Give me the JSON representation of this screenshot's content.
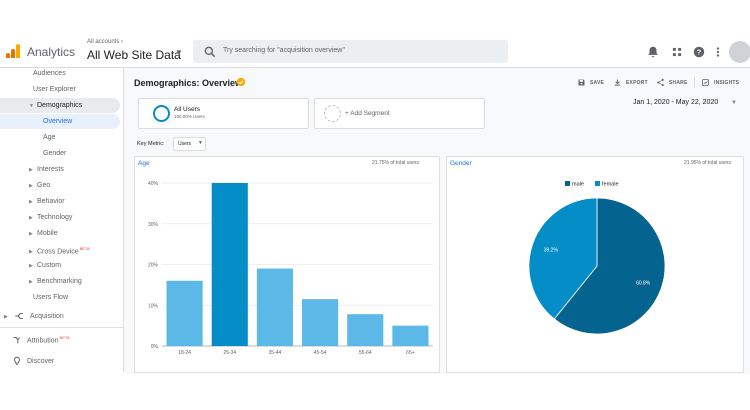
{
  "header": {
    "app_name": "Analytics",
    "account_label": "All accounts",
    "property_name": "All Web Site Data",
    "search_placeholder": "Try searching for \"acquisition overview\""
  },
  "sidebar": {
    "items": [
      {
        "label": "Audiences"
      },
      {
        "label": "User Explorer"
      },
      {
        "label": "Demographics"
      },
      {
        "label": "Overview"
      },
      {
        "label": "Age"
      },
      {
        "label": "Gender"
      },
      {
        "label": "Interests"
      },
      {
        "label": "Geo"
      },
      {
        "label": "Behavior"
      },
      {
        "label": "Technology"
      },
      {
        "label": "Mobile"
      },
      {
        "label": "Cross Device",
        "badge": "BETA"
      },
      {
        "label": "Custom"
      },
      {
        "label": "Benchmarking"
      },
      {
        "label": "Users Flow"
      },
      {
        "label": "Acquisition"
      },
      {
        "label": "Attribution",
        "badge": "BETA"
      },
      {
        "label": "Discover"
      }
    ]
  },
  "page": {
    "title": "Demographics: Overview",
    "actions": [
      "SAVE",
      "EXPORT",
      "SHARE",
      "INSIGHTS"
    ],
    "segment": {
      "name": "All Users",
      "sub": "100.00% Users"
    },
    "add_segment": "+ Add Segment",
    "date_range": "Jan 1, 2020 - May 22, 2020",
    "key_metric_label": "Key Metric:",
    "key_metric_value": "Users"
  },
  "age_card": {
    "title": "Age",
    "pct_label": "21.75% of total users"
  },
  "gender_card": {
    "title": "Gender",
    "pct_label": "21.95% of total users"
  },
  "colors": {
    "accent": "#1a73e8",
    "logo_orange": "#f9ab00",
    "logo_dark": "#e37400",
    "bar_light": "#5cb8e6",
    "bar_dark": "#058dc7",
    "pie_male": "#05638f",
    "pie_female": "#058dc7"
  },
  "chart_data": [
    {
      "type": "bar",
      "categories": [
        "18-24",
        "25-34",
        "35-44",
        "45-54",
        "55-64",
        "65+"
      ],
      "values": [
        16,
        40,
        19,
        11.5,
        7.8,
        5
      ],
      "ylim": [
        0,
        40
      ],
      "yticks": [
        "0%",
        "10%",
        "20%",
        "30%",
        "40%"
      ],
      "grid": true
    },
    {
      "type": "pie",
      "labels": [
        "male",
        "female"
      ],
      "values": [
        60.8,
        39.2
      ],
      "data_labels": [
        "60.8%",
        "39.2%"
      ],
      "legend": "top"
    }
  ]
}
